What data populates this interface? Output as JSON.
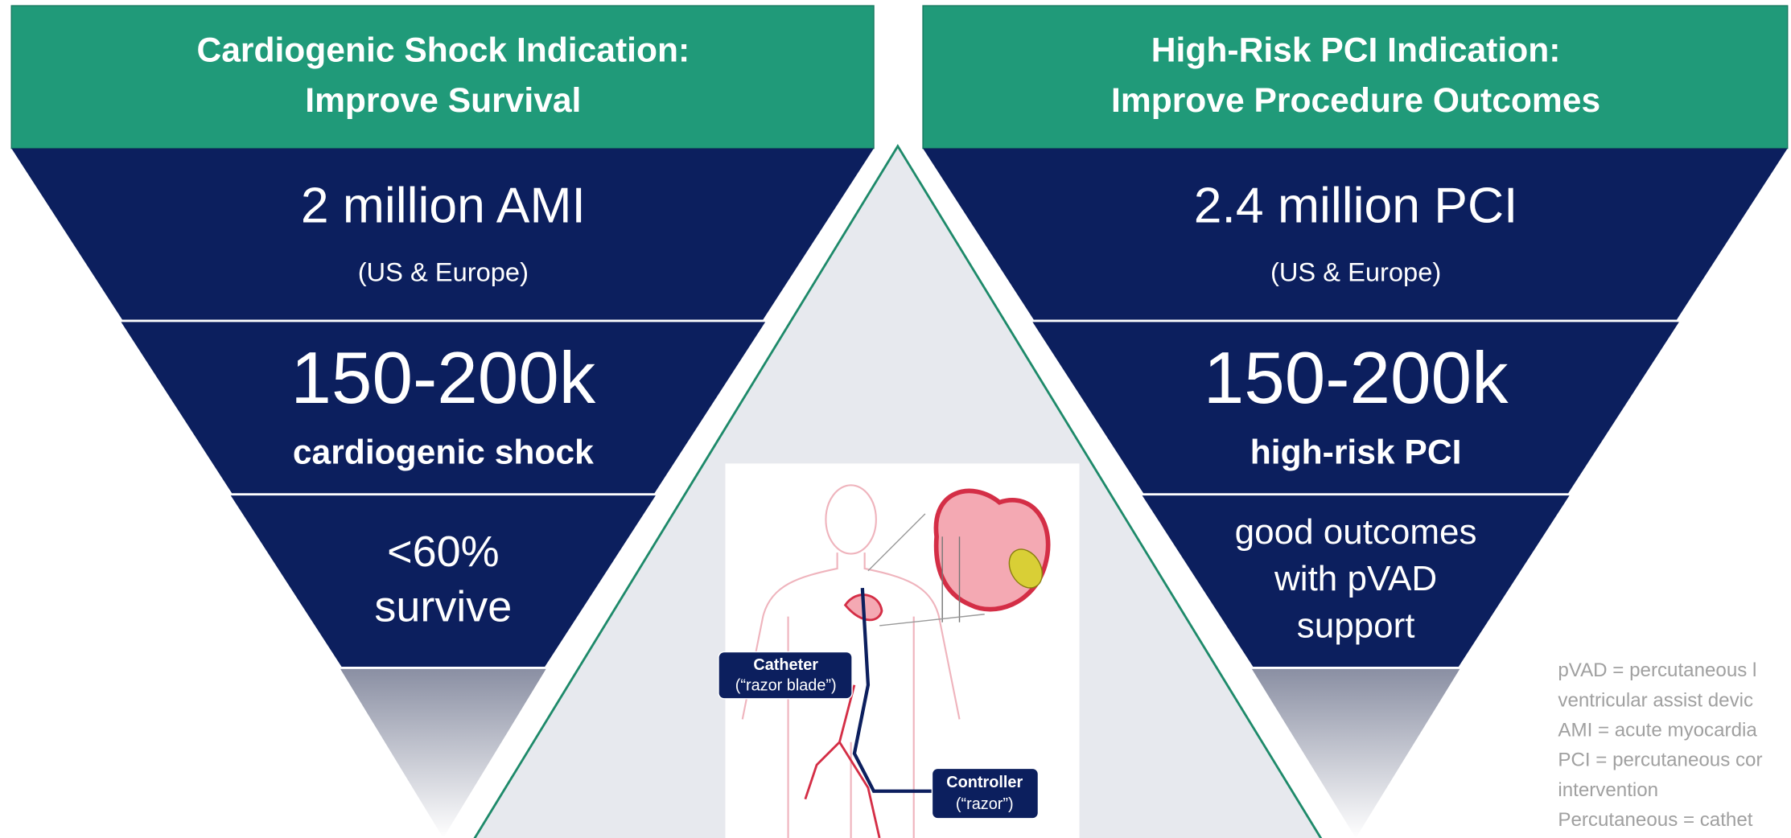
{
  "left": {
    "header": [
      "Cardiogenic Shock Indication:",
      "Improve Survival"
    ],
    "tier1": {
      "main": "2 million AMI",
      "sub": "(US & Europe)"
    },
    "tier2": {
      "main": "150-200k",
      "sub": "cardiogenic shock"
    },
    "tier3": [
      "<60%",
      "survive"
    ]
  },
  "right": {
    "header": [
      "High-Risk PCI Indication:",
      "Improve Procedure Outcomes"
    ],
    "tier1": {
      "main": "2.4 million PCI",
      "sub": "(US & Europe)"
    },
    "tier2": {
      "main": "150-200k",
      "sub": "high-risk PCI"
    },
    "tier3": [
      "good outcomes",
      "with pVAD",
      "support"
    ]
  },
  "image_labels": {
    "catheter": [
      "Catheter",
      "(“razor blade”)"
    ],
    "controller": [
      "Controller",
      "(“razor”)"
    ]
  },
  "footnote": [
    "pVAD = percutaneous l",
    "ventricular assist devic",
    "AMI = acute myocardia",
    "PCI = percutaneous cor",
    "intervention",
    "Percutaneous = cathet"
  ]
}
